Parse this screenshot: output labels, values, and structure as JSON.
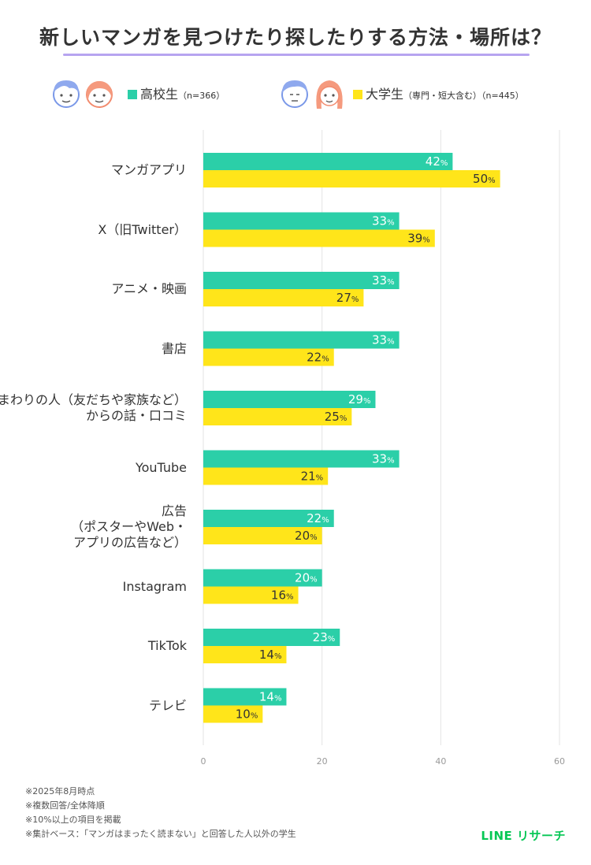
{
  "title": "新しいマンガを見つけたり探したりする方法・場所は？",
  "legend": [
    {
      "label": "高校生",
      "sub": "（n=366）",
      "color": "#2bcfa8"
    },
    {
      "label": "大学生",
      "sub": "（専門・短大含む）（n=445）",
      "color": "#ffe51a"
    }
  ],
  "chart_data": {
    "type": "bar",
    "orientation": "horizontal",
    "categories": [
      [
        "マンガアプリ"
      ],
      [
        "X（旧Twitter）"
      ],
      [
        "アニメ・映画"
      ],
      [
        "書店"
      ],
      [
        "まわりの人（友だちや家族など）",
        "からの話・口コミ"
      ],
      [
        "YouTube"
      ],
      [
        "広告",
        "（ポスターやWeb・",
        "アプリの広告など）"
      ],
      [
        "Instagram"
      ],
      [
        "TikTok"
      ],
      [
        "テレビ"
      ]
    ],
    "series": [
      {
        "name": "高校生（n=366）",
        "values": [
          42,
          33,
          33,
          33,
          29,
          33,
          22,
          20,
          23,
          14
        ]
      },
      {
        "name": "大学生（専門・短大含む）（n=445）",
        "values": [
          50,
          39,
          27,
          22,
          25,
          21,
          20,
          16,
          14,
          10
        ]
      }
    ],
    "value_suffix": "%",
    "xlim": [
      0,
      60
    ],
    "xticks": [
      0,
      20,
      40,
      60
    ],
    "grid": true,
    "legend": "top"
  },
  "footnotes": [
    "※2025年8月時点",
    "※複数回答/全体降順",
    "※10%以上の項目を掲載",
    "※集計ベース：「マンガはまったく読まない」と回答した人以外の学生"
  ],
  "brand": "LINE リサーチ",
  "icons": [
    "highschool-students-icon",
    "university-students-icon"
  ]
}
